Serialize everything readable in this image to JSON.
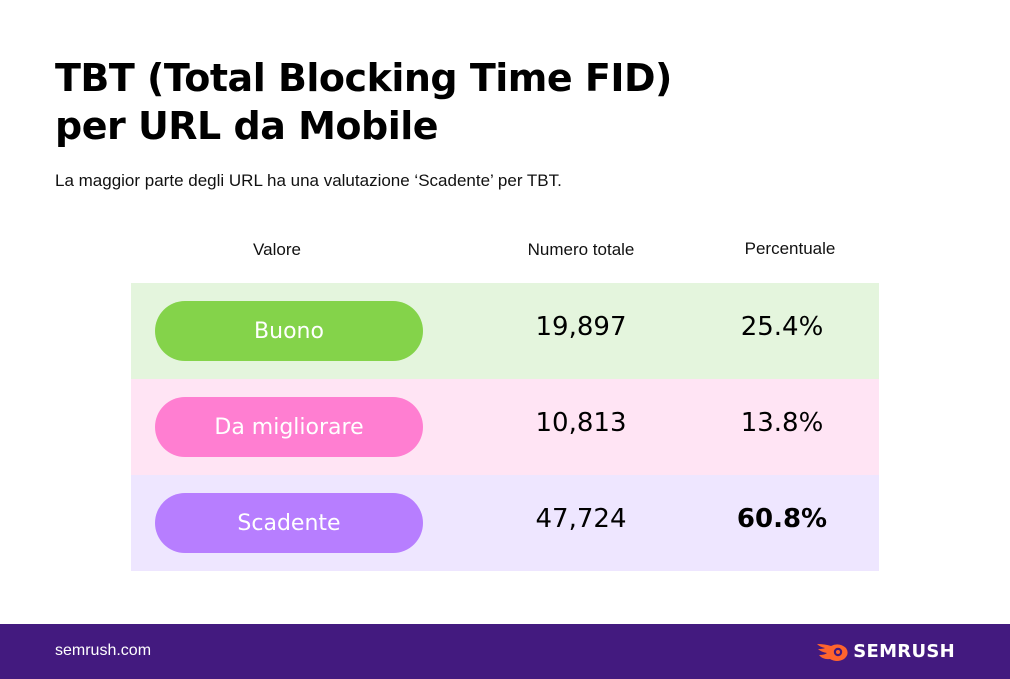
{
  "title": {
    "line1": "TBT (Total Blocking Time FID)",
    "line2": "per URL da Mobile"
  },
  "subtitle": "La maggior parte degli URL ha una valutazione ‘Scadente’ per TBT.",
  "table": {
    "headers": {
      "valore": "Valore",
      "numero": "Numero totale",
      "percentuale": "Percentuale"
    },
    "rows": [
      {
        "label": "Buono",
        "count": "19,897",
        "percent": "25.4%"
      },
      {
        "label": "Da migliorare",
        "count": "10,813",
        "percent": "13.8%"
      },
      {
        "label": "Scadente",
        "count": "47,724",
        "percent": "60.8%"
      }
    ]
  },
  "colors": {
    "buono": "#84d34a",
    "da_migliorare": "#ff7ed1",
    "scadente": "#b77eff",
    "footer": "#431a7f",
    "logo_accent": "#ff642d"
  },
  "footer": {
    "url": "semrush.com",
    "logo_text": "SEMRUSH",
    "logo_icon": "semrush-fire-icon"
  }
}
